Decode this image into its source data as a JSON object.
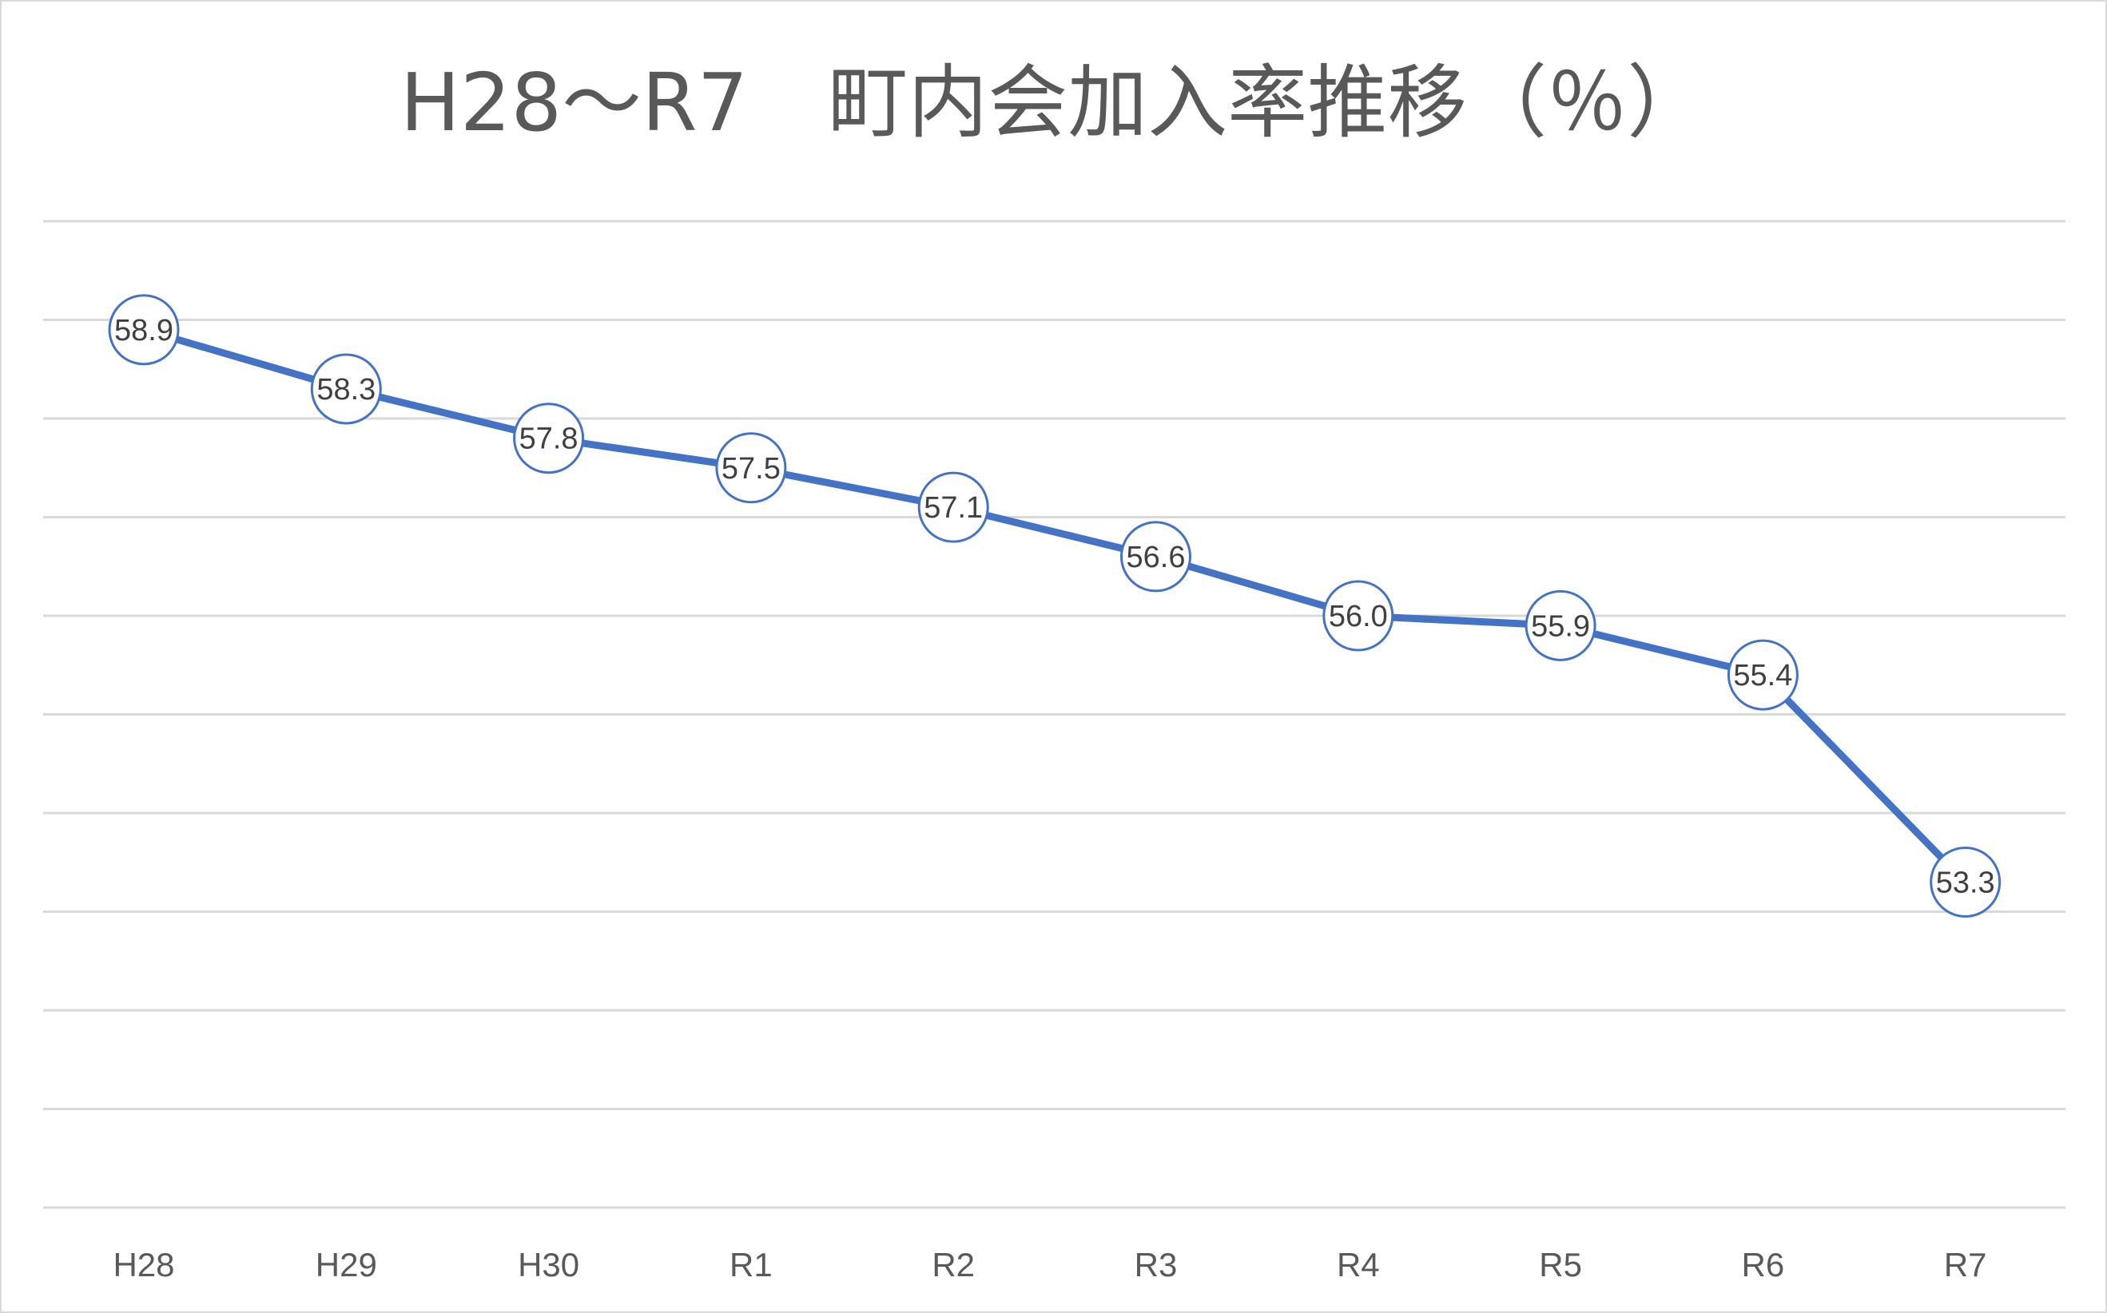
{
  "chart_data": {
    "type": "line",
    "title": "H28～R7　町内会加入率推移（％）",
    "xlabel": "",
    "ylabel": "",
    "categories": [
      "H28",
      "H29",
      "H30",
      "R1",
      "R2",
      "R3",
      "R4",
      "R5",
      "R6",
      "R7"
    ],
    "series": [
      {
        "values": [
          58.9,
          58.3,
          57.8,
          57.5,
          57.1,
          56.6,
          56.0,
          55.9,
          55.4,
          53.3
        ],
        "data_labels": [
          "58.9",
          "58.3",
          "57.8",
          "57.5",
          "57.1",
          "56.6",
          "56.0",
          "55.9",
          "55.4",
          "53.3"
        ]
      }
    ],
    "ylim": [
      50,
      60
    ],
    "ygrid_step": 1,
    "y_axis_labels_shown": false,
    "grid": true,
    "legend": "none",
    "marker": "circle",
    "colors": {
      "series": "#4472c4",
      "grid": "#d9d9d9",
      "title": "#595959",
      "tick_label": "#595959",
      "data_label": "#404040"
    }
  }
}
